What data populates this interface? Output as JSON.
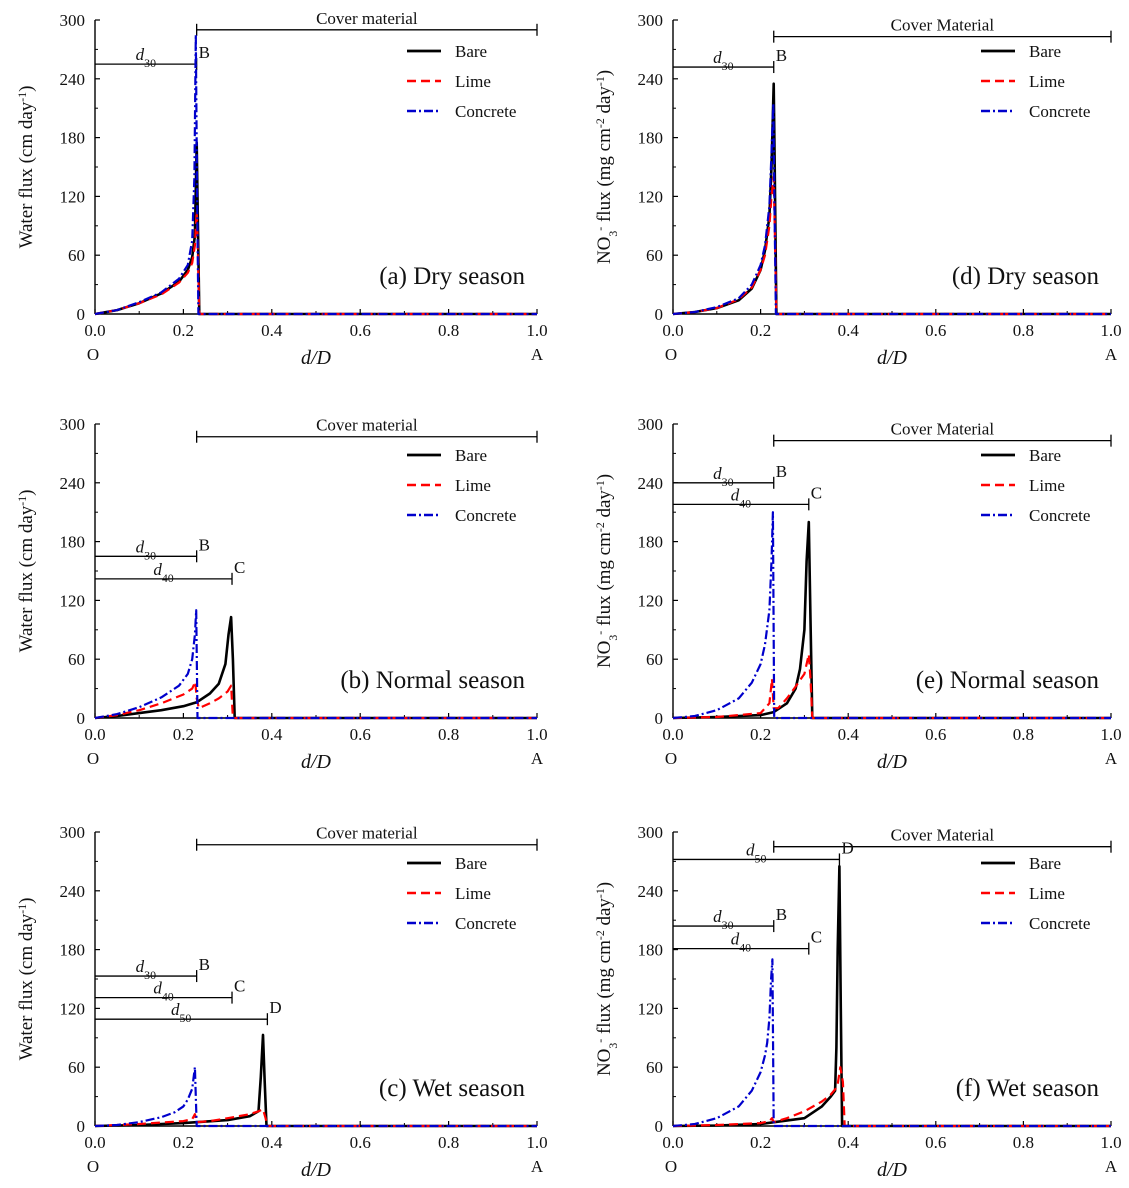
{
  "chart_data": [
    {
      "id": "a",
      "type": "line",
      "title": "(a) Dry season",
      "xlabel": "d/D",
      "ylabel": "Water flux (cm day⁻¹)",
      "xlim": [
        0,
        1.0
      ],
      "ylim": [
        0,
        300
      ],
      "x_ticks": [
        "0.0",
        "0.2",
        "0.4",
        "0.6",
        "0.8",
        "1.0"
      ],
      "y_ticks": [
        "0",
        "60",
        "120",
        "180",
        "240",
        "300"
      ],
      "point_labels": {
        "origin": "O",
        "end": "A"
      },
      "cover": {
        "label": "Cover material",
        "x_start": 0.23,
        "x_end": 1.0,
        "y": 290
      },
      "dims": [
        {
          "sym": "d",
          "sub": "30",
          "end_label": "B",
          "x_end": 0.23,
          "y": 255
        }
      ],
      "legend": [
        "Bare",
        "Lime",
        "Concrete"
      ],
      "series": [
        {
          "name": "Bare",
          "color": "#000000",
          "dash": "solid",
          "x": [
            0,
            0.05,
            0.1,
            0.15,
            0.19,
            0.21,
            0.22,
            0.226,
            0.23,
            0.232,
            0.234,
            0.236,
            0.5,
            1.0
          ],
          "y": [
            0,
            4,
            11,
            21,
            33,
            45,
            58,
            80,
            175,
            120,
            60,
            0,
            0,
            0
          ]
        },
        {
          "name": "Lime",
          "color": "#ff0000",
          "dash": "dash",
          "x": [
            0,
            0.05,
            0.1,
            0.15,
            0.19,
            0.21,
            0.22,
            0.226,
            0.23,
            0.232,
            0.234,
            0.236,
            0.5,
            1.0
          ],
          "y": [
            0,
            4,
            11,
            20,
            32,
            42,
            52,
            70,
            105,
            80,
            40,
            0,
            0,
            0
          ]
        },
        {
          "name": "Concrete",
          "color": "#0000cc",
          "dash": "dashdot",
          "x": [
            0,
            0.05,
            0.1,
            0.15,
            0.19,
            0.21,
            0.22,
            0.225,
            0.228,
            0.231,
            0.234,
            0.5,
            1.0
          ],
          "y": [
            0,
            4,
            12,
            22,
            36,
            50,
            75,
            140,
            285,
            120,
            0,
            0,
            0
          ]
        }
      ]
    },
    {
      "id": "d",
      "type": "line",
      "title": "(d) Dry season",
      "xlabel": "d/D",
      "ylabel": "NO₃⁻ flux (mg cm⁻² day⁻¹)",
      "xlim": [
        0,
        1.0
      ],
      "ylim": [
        0,
        300
      ],
      "x_ticks": [
        "0.0",
        "0.2",
        "0.4",
        "0.6",
        "0.8",
        "1.0"
      ],
      "y_ticks": [
        "0",
        "60",
        "120",
        "180",
        "240",
        "300"
      ],
      "point_labels": {
        "origin": "O",
        "end": "A"
      },
      "cover": {
        "label": "Cover Material",
        "x_start": 0.23,
        "x_end": 1.0,
        "y": 283
      },
      "dims": [
        {
          "sym": "d",
          "sub": "30",
          "end_label": "B",
          "x_end": 0.23,
          "y": 252
        }
      ],
      "legend": [
        "Bare",
        "Lime",
        "Concrete"
      ],
      "series": [
        {
          "name": "Bare",
          "color": "#000000",
          "dash": "solid",
          "x": [
            0,
            0.05,
            0.1,
            0.15,
            0.18,
            0.2,
            0.21,
            0.22,
            0.225,
            0.23,
            0.232,
            0.234,
            0.236,
            0.5,
            1.0
          ],
          "y": [
            0,
            2,
            6,
            14,
            26,
            45,
            65,
            100,
            150,
            235,
            160,
            80,
            0,
            0,
            0
          ]
        },
        {
          "name": "Lime",
          "color": "#ff0000",
          "dash": "dash",
          "x": [
            0,
            0.05,
            0.1,
            0.15,
            0.18,
            0.2,
            0.21,
            0.22,
            0.225,
            0.23,
            0.233,
            0.236,
            0.5,
            1.0
          ],
          "y": [
            0,
            2,
            6,
            15,
            27,
            45,
            60,
            90,
            120,
            140,
            70,
            0,
            0,
            0
          ]
        },
        {
          "name": "Concrete",
          "color": "#0000cc",
          "dash": "dashdot",
          "x": [
            0,
            0.05,
            0.1,
            0.15,
            0.18,
            0.2,
            0.21,
            0.22,
            0.225,
            0.229,
            0.232,
            0.235,
            0.5,
            1.0
          ],
          "y": [
            0,
            2,
            7,
            16,
            30,
            50,
            70,
            110,
            165,
            215,
            100,
            0,
            0,
            0
          ]
        }
      ]
    },
    {
      "id": "b",
      "type": "line",
      "title": "(b) Normal season",
      "xlabel": "d/D",
      "ylabel": "Water flux (cm day⁻¹)",
      "xlim": [
        0,
        1.0
      ],
      "ylim": [
        0,
        300
      ],
      "x_ticks": [
        "0.0",
        "0.2",
        "0.4",
        "0.6",
        "0.8",
        "1.0"
      ],
      "y_ticks": [
        "0",
        "60",
        "120",
        "180",
        "240",
        "300"
      ],
      "point_labels": {
        "origin": "O",
        "end": "A"
      },
      "cover": {
        "label": "Cover material",
        "x_start": 0.23,
        "x_end": 1.0,
        "y": 287
      },
      "dims": [
        {
          "sym": "d",
          "sub": "30",
          "end_label": "B",
          "x_end": 0.23,
          "y": 165
        },
        {
          "sym": "d",
          "sub": "40",
          "end_label": "C",
          "x_end": 0.31,
          "y": 142
        }
      ],
      "legend": [
        "Bare",
        "Lime",
        "Concrete"
      ],
      "series": [
        {
          "name": "Bare",
          "color": "#000000",
          "dash": "solid",
          "x": [
            0,
            0.05,
            0.1,
            0.15,
            0.2,
            0.23,
            0.26,
            0.28,
            0.295,
            0.302,
            0.308,
            0.312,
            0.316,
            0.5,
            1.0
          ],
          "y": [
            0,
            2,
            5,
            8,
            12,
            16,
            25,
            35,
            55,
            85,
            103,
            60,
            0,
            0,
            0
          ]
        },
        {
          "name": "Lime",
          "color": "#ff0000",
          "dash": "dash",
          "x": [
            0,
            0.05,
            0.1,
            0.15,
            0.2,
            0.22,
            0.227,
            0.23,
            0.235,
            0.26,
            0.28,
            0.3,
            0.308,
            0.312,
            0.5,
            1.0
          ],
          "y": [
            0,
            3,
            8,
            15,
            24,
            30,
            37,
            20,
            10,
            15,
            20,
            27,
            33,
            0,
            0,
            0
          ]
        },
        {
          "name": "Concrete",
          "color": "#0000cc",
          "dash": "dashdot",
          "x": [
            0,
            0.05,
            0.1,
            0.15,
            0.19,
            0.21,
            0.22,
            0.226,
            0.229,
            0.232,
            0.5,
            1.0
          ],
          "y": [
            0,
            4,
            11,
            21,
            33,
            45,
            60,
            85,
            110,
            0,
            0,
            0
          ]
        }
      ]
    },
    {
      "id": "e",
      "type": "line",
      "title": "(e) Normal season",
      "xlabel": "d/D",
      "ylabel": "NO₃⁻ flux (mg cm⁻² day⁻¹)",
      "xlim": [
        0,
        1.0
      ],
      "ylim": [
        0,
        300
      ],
      "x_ticks": [
        "0.0",
        "0.2",
        "0.4",
        "0.6",
        "0.8",
        "1.0"
      ],
      "y_ticks": [
        "0",
        "60",
        "120",
        "180",
        "240",
        "300"
      ],
      "point_labels": {
        "origin": "O",
        "end": "A"
      },
      "cover": {
        "label": "Cover Material",
        "x_start": 0.23,
        "x_end": 1.0,
        "y": 283
      },
      "dims": [
        {
          "sym": "d",
          "sub": "30",
          "end_label": "B",
          "x_end": 0.23,
          "y": 240
        },
        {
          "sym": "d",
          "sub": "40",
          "end_label": "C",
          "x_end": 0.31,
          "y": 218
        }
      ],
      "legend": [
        "Bare",
        "Lime",
        "Concrete"
      ],
      "series": [
        {
          "name": "Bare",
          "color": "#000000",
          "dash": "solid",
          "x": [
            0,
            0.1,
            0.2,
            0.23,
            0.26,
            0.28,
            0.29,
            0.3,
            0.305,
            0.31,
            0.314,
            0.318,
            0.5,
            1.0
          ],
          "y": [
            0,
            1,
            3,
            6,
            15,
            30,
            50,
            90,
            160,
            200,
            100,
            0,
            0,
            0
          ]
        },
        {
          "name": "Lime",
          "color": "#ff0000",
          "dash": "dash",
          "x": [
            0,
            0.1,
            0.2,
            0.22,
            0.226,
            0.23,
            0.24,
            0.26,
            0.28,
            0.3,
            0.31,
            0.314,
            0.318,
            0.5,
            1.0
          ],
          "y": [
            0,
            1,
            5,
            15,
            40,
            10,
            10,
            20,
            32,
            45,
            65,
            40,
            0,
            0,
            0
          ]
        },
        {
          "name": "Concrete",
          "color": "#0000cc",
          "dash": "dashdot",
          "x": [
            0,
            0.05,
            0.1,
            0.15,
            0.18,
            0.2,
            0.21,
            0.22,
            0.225,
            0.228,
            0.231,
            0.5,
            1.0
          ],
          "y": [
            0,
            2,
            8,
            20,
            36,
            55,
            75,
            110,
            160,
            210,
            0,
            0,
            0
          ]
        }
      ]
    },
    {
      "id": "c",
      "type": "line",
      "title": "(c) Wet season",
      "xlabel": "d/D",
      "ylabel": "Water flux (cm day⁻¹)",
      "xlim": [
        0,
        1.0
      ],
      "ylim": [
        0,
        300
      ],
      "x_ticks": [
        "0.0",
        "0.2",
        "0.4",
        "0.6",
        "0.8",
        "1.0"
      ],
      "y_ticks": [
        "0",
        "60",
        "120",
        "180",
        "240",
        "300"
      ],
      "point_labels": {
        "origin": "O",
        "end": "A"
      },
      "cover": {
        "label": "Cover material",
        "x_start": 0.23,
        "x_end": 1.0,
        "y": 287
      },
      "dims": [
        {
          "sym": "d",
          "sub": "30",
          "end_label": "B",
          "x_end": 0.23,
          "y": 153
        },
        {
          "sym": "d",
          "sub": "40",
          "end_label": "C",
          "x_end": 0.31,
          "y": 131
        },
        {
          "sym": "d",
          "sub": "50",
          "end_label": "D",
          "x_end": 0.39,
          "y": 109
        }
      ],
      "legend": [
        "Bare",
        "Lime",
        "Concrete"
      ],
      "series": [
        {
          "name": "Bare",
          "color": "#000000",
          "dash": "solid",
          "x": [
            0,
            0.1,
            0.2,
            0.3,
            0.35,
            0.37,
            0.375,
            0.38,
            0.384,
            0.388,
            0.5,
            1.0
          ],
          "y": [
            0,
            1,
            3,
            6,
            10,
            15,
            50,
            93,
            45,
            0,
            0,
            0
          ]
        },
        {
          "name": "Lime",
          "color": "#ff0000",
          "dash": "dash",
          "x": [
            0,
            0.1,
            0.2,
            0.22,
            0.226,
            0.23,
            0.26,
            0.3,
            0.35,
            0.37,
            0.38,
            0.386,
            0.39,
            0.5,
            1.0
          ],
          "y": [
            0,
            2,
            5,
            7,
            12,
            4,
            5,
            8,
            12,
            15,
            17,
            8,
            0,
            0,
            0
          ]
        },
        {
          "name": "Concrete",
          "color": "#0000cc",
          "dash": "dashdot",
          "x": [
            0,
            0.05,
            0.1,
            0.15,
            0.18,
            0.2,
            0.21,
            0.22,
            0.226,
            0.23,
            0.5,
            1.0
          ],
          "y": [
            0,
            1,
            4,
            9,
            14,
            20,
            27,
            38,
            60,
            0,
            0,
            0
          ]
        }
      ]
    },
    {
      "id": "f",
      "type": "line",
      "title": "(f) Wet season",
      "xlabel": "d/D",
      "ylabel": "NO₃⁻ flux (mg cm⁻² day⁻¹)",
      "xlim": [
        0,
        1.0
      ],
      "ylim": [
        0,
        300
      ],
      "x_ticks": [
        "0.0",
        "0.2",
        "0.4",
        "0.6",
        "0.8",
        "1.0"
      ],
      "y_ticks": [
        "0",
        "60",
        "120",
        "180",
        "240",
        "300"
      ],
      "point_labels": {
        "origin": "O",
        "end": "A"
      },
      "cover": {
        "label": "Cover Material",
        "x_start": 0.23,
        "x_end": 1.0,
        "y": 285
      },
      "dims": [
        {
          "sym": "d",
          "sub": "50",
          "end_label": "D",
          "x_end": 0.38,
          "y": 272
        },
        {
          "sym": "d",
          "sub": "30",
          "end_label": "B",
          "x_end": 0.23,
          "y": 204
        },
        {
          "sym": "d",
          "sub": "40",
          "end_label": "C",
          "x_end": 0.31,
          "y": 181
        }
      ],
      "legend": [
        "Bare",
        "Lime",
        "Concrete"
      ],
      "series": [
        {
          "name": "Bare",
          "color": "#000000",
          "dash": "solid",
          "x": [
            0,
            0.1,
            0.2,
            0.3,
            0.34,
            0.36,
            0.37,
            0.373,
            0.376,
            0.38,
            0.383,
            0.386,
            0.5,
            1.0
          ],
          "y": [
            0,
            0.5,
            2,
            8,
            20,
            30,
            36,
            80,
            180,
            265,
            120,
            0,
            0,
            0
          ]
        },
        {
          "name": "Lime",
          "color": "#ff0000",
          "dash": "dash",
          "x": [
            0,
            0.1,
            0.2,
            0.22,
            0.226,
            0.23,
            0.26,
            0.3,
            0.34,
            0.36,
            0.375,
            0.382,
            0.388,
            0.392,
            0.5,
            1.0
          ],
          "y": [
            0,
            1,
            3,
            5,
            8,
            4,
            8,
            15,
            25,
            32,
            40,
            60,
            45,
            0,
            0,
            0
          ]
        },
        {
          "name": "Concrete",
          "color": "#0000cc",
          "dash": "dashdot",
          "x": [
            0,
            0.05,
            0.1,
            0.15,
            0.18,
            0.2,
            0.21,
            0.215,
            0.22,
            0.224,
            0.227,
            0.23,
            0.5,
            1.0
          ],
          "y": [
            0,
            2,
            8,
            20,
            36,
            55,
            72,
            85,
            110,
            150,
            170,
            0,
            0,
            0
          ]
        }
      ]
    }
  ]
}
